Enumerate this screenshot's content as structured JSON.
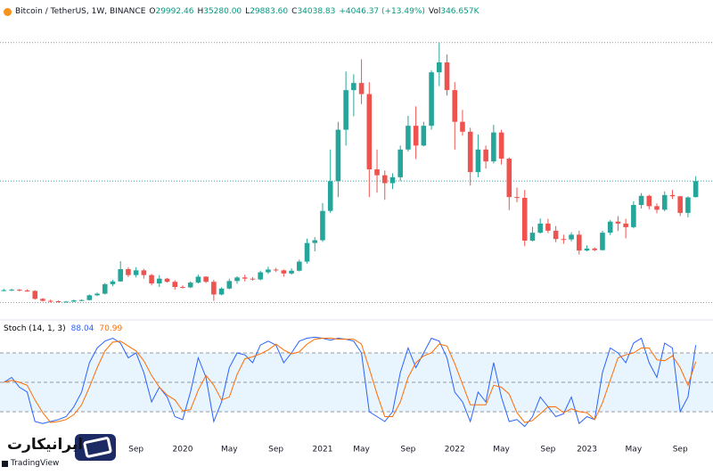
{
  "header": {
    "symbol": "Bitcoin / TetherUS, 1W, BINANCE",
    "stats": [
      {
        "key": "O",
        "text": "29992.46"
      },
      {
        "key": "H",
        "text": "35280.00"
      },
      {
        "key": "L",
        "text": "29883.60"
      },
      {
        "key": "C",
        "text": "34038.83"
      }
    ],
    "change": "+4046.37 (+13.49%)",
    "volume_key": "Vol",
    "volume": "346.657K"
  },
  "chart_data": [
    {
      "type": "candlestick",
      "categories": [
        null,
        null,
        null,
        null,
        null,
        null,
        null,
        null,
        null,
        null,
        null,
        null,
        null,
        null,
        null,
        null,
        null,
        "Sep",
        null,
        null,
        null,
        null,
        null,
        "2020",
        null,
        null,
        null,
        null,
        null,
        "May",
        null,
        null,
        null,
        null,
        null,
        "Sep",
        null,
        null,
        null,
        null,
        null,
        "2021",
        null,
        null,
        null,
        null,
        "May",
        null,
        null,
        null,
        null,
        null,
        "Sep",
        null,
        null,
        null,
        null,
        null,
        "2022",
        null,
        null,
        null,
        null,
        null,
        "May",
        null,
        null,
        null,
        null,
        null,
        "Sep",
        null,
        null,
        null,
        null,
        "2023",
        null,
        null,
        null,
        null,
        null,
        "May",
        null,
        null,
        null,
        null,
        null,
        "Sep",
        null,
        null
      ],
      "open": [
        6400,
        6500,
        6600,
        6400,
        6300,
        4300,
        3800,
        3700,
        3550,
        3600,
        3900,
        4000,
        5200,
        5600,
        8000,
        8700,
        11800,
        10300,
        11500,
        10300,
        8200,
        9400,
        8600,
        7300,
        7200,
        8400,
        9900,
        8600,
        5400,
        6900,
        8800,
        9700,
        9400,
        9200,
        11000,
        11700,
        11500,
        10700,
        11400,
        13700,
        18400,
        19100,
        26500,
        34000,
        47000,
        57000,
        58800,
        56000,
        37000,
        35500,
        33500,
        35000,
        42000,
        48000,
        43000,
        48000,
        61500,
        64000,
        57000,
        49000,
        46500,
        36300,
        42000,
        39000,
        46300,
        39700,
        30000,
        29800,
        19000,
        21000,
        23300,
        21500,
        19400,
        19300,
        20500,
        16500,
        17000,
        16600,
        21000,
        23800,
        23300,
        22400,
        28000,
        30300,
        27700,
        26800,
        30500,
        30200,
        26000,
        29992.46
      ],
      "high": [
        6800,
        6900,
        6800,
        6700,
        6500,
        4500,
        4100,
        3900,
        3750,
        4100,
        4150,
        5400,
        5900,
        8300,
        9100,
        13800,
        12300,
        12300,
        11900,
        10600,
        10300,
        9600,
        9000,
        7700,
        8700,
        10400,
        10000,
        9100,
        7200,
        9400,
        10000,
        10400,
        9800,
        11400,
        12400,
        12100,
        11700,
        12000,
        14200,
        19500,
        19900,
        28500,
        42000,
        49000,
        61700,
        61000,
        64800,
        59000,
        42000,
        36700,
        36000,
        43000,
        50500,
        52900,
        49000,
        62000,
        69000,
        66000,
        59000,
        52000,
        47500,
        45800,
        43000,
        48200,
        47000,
        40000,
        32400,
        31800,
        22500,
        24600,
        24500,
        22700,
        20500,
        21100,
        21500,
        17800,
        17300,
        21500,
        24200,
        25200,
        24500,
        28900,
        31000,
        30600,
        28400,
        31400,
        31800,
        30300,
        30200,
        35280
      ],
      "low": [
        6200,
        6300,
        6200,
        6100,
        4100,
        3600,
        3400,
        3350,
        3450,
        3500,
        3700,
        3900,
        5000,
        5400,
        7500,
        8600,
        9800,
        9700,
        9400,
        7700,
        7300,
        8400,
        6600,
        6900,
        7000,
        8200,
        8300,
        3800,
        5200,
        6700,
        8100,
        8700,
        8900,
        9000,
        10600,
        11100,
        9900,
        10400,
        11200,
        13200,
        16300,
        18700,
        26000,
        30000,
        43000,
        50400,
        53500,
        30000,
        31100,
        29300,
        32000,
        34000,
        41500,
        39600,
        42800,
        47000,
        58000,
        55600,
        42000,
        45500,
        32900,
        35000,
        37200,
        38500,
        38200,
        26700,
        28700,
        17600,
        18800,
        20800,
        20900,
        18600,
        18200,
        18800,
        15500,
        16300,
        16300,
        16500,
        20400,
        21400,
        19600,
        22100,
        27100,
        26900,
        25900,
        26400,
        29500,
        25200,
        24900,
        29883.6
      ],
      "close": [
        6500,
        6600,
        6400,
        6300,
        4300,
        3800,
        3700,
        3550,
        3600,
        3900,
        4000,
        5200,
        5600,
        8000,
        8700,
        11800,
        10300,
        11500,
        10300,
        8200,
        9400,
        8600,
        7300,
        7200,
        8400,
        9900,
        8600,
        5400,
        6900,
        8800,
        9700,
        9400,
        9200,
        11000,
        11700,
        11500,
        10700,
        11400,
        13700,
        18400,
        19100,
        26500,
        34000,
        47000,
        57000,
        58800,
        56000,
        37000,
        35500,
        33500,
        35000,
        42000,
        48000,
        43000,
        48000,
        61500,
        64000,
        57000,
        49000,
        46500,
        36300,
        42000,
        39000,
        46300,
        39700,
        30000,
        29800,
        19000,
        21000,
        23300,
        21500,
        19400,
        19300,
        20500,
        16500,
        17000,
        16600,
        21000,
        23800,
        23300,
        22400,
        28000,
        30300,
        27700,
        26800,
        30500,
        30200,
        26000,
        29900,
        34038.83
      ],
      "up_color": "#26a69a",
      "down_color": "#ef5350",
      "ylim": [
        1000,
        73000
      ]
    },
    {
      "type": "line",
      "title": "Stoch (14, 1, 3)",
      "series": [
        {
          "color": "#2962ff",
          "values": [
            50,
            55,
            45,
            40,
            10,
            8,
            10,
            12,
            15,
            25,
            40,
            70,
            85,
            92,
            95,
            90,
            75,
            80,
            60,
            30,
            45,
            35,
            15,
            12,
            40,
            75,
            55,
            10,
            30,
            65,
            80,
            78,
            70,
            88,
            92,
            88,
            70,
            80,
            92,
            95,
            96,
            95,
            93,
            95,
            94,
            92,
            80,
            20,
            15,
            10,
            20,
            60,
            85,
            65,
            80,
            95,
            92,
            75,
            40,
            30,
            10,
            40,
            30,
            70,
            35,
            10,
            12,
            5,
            15,
            35,
            25,
            15,
            18,
            35,
            8,
            15,
            12,
            60,
            85,
            80,
            70,
            90,
            95,
            70,
            55,
            90,
            85,
            20,
            35,
            88.04
          ]
        },
        {
          "color": "#ff6d00",
          "values": [
            50,
            52,
            50,
            47,
            32,
            19,
            9,
            10,
            12,
            17,
            27,
            45,
            65,
            82,
            91,
            92,
            87,
            82,
            72,
            57,
            45,
            37,
            32,
            21,
            22,
            42,
            57,
            47,
            32,
            35,
            58,
            74,
            76,
            79,
            83,
            89,
            83,
            79,
            81,
            89,
            94,
            95,
            95,
            94,
            94,
            94,
            89,
            64,
            38,
            15,
            15,
            30,
            55,
            70,
            77,
            80,
            89,
            87,
            69,
            48,
            27,
            27,
            27,
            47,
            45,
            38,
            19,
            9,
            11,
            18,
            25,
            25,
            19,
            23,
            20,
            19,
            12,
            29,
            52,
            75,
            78,
            80,
            85,
            85,
            73,
            72,
            77,
            65,
            47,
            70.99
          ]
        }
      ],
      "ylim": [
        0,
        100
      ],
      "levels": [
        20,
        50,
        80
      ],
      "band_color": "#2196f3"
    }
  ],
  "branding": {
    "logo_text": "ایرانیکارت",
    "tradingview": "TradingView"
  }
}
